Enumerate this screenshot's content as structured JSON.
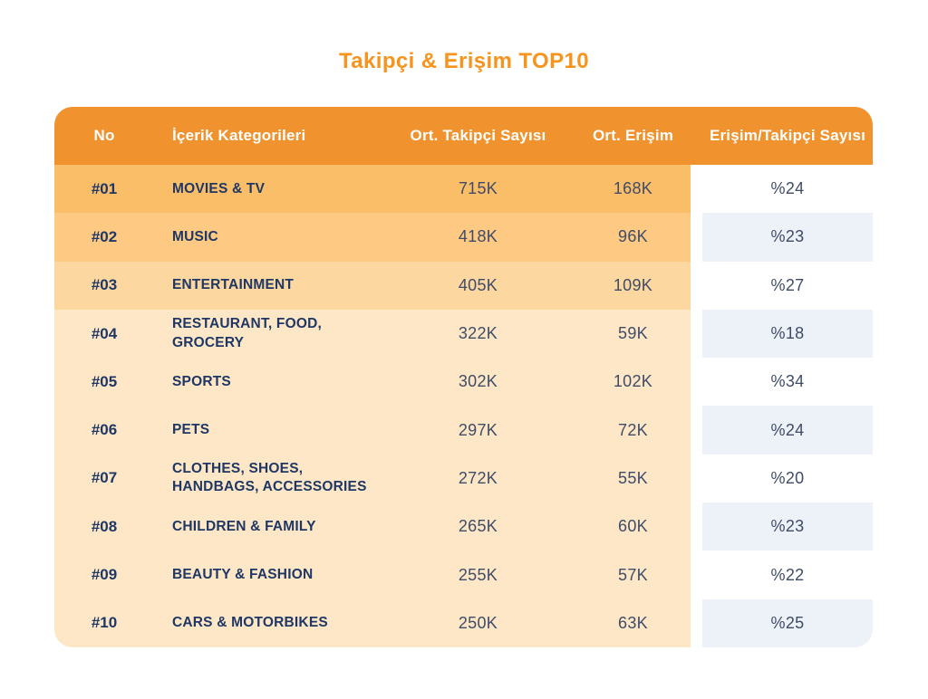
{
  "title": "Takipçi & Erişim TOP10",
  "table": {
    "headers": {
      "no": "No",
      "category": "İçerik Kategorileri",
      "followers": "Ort. Takipçi Sayısı",
      "reach": "Ort. Erişim",
      "ratio": "Erişim/Takipçi Sayısı"
    },
    "rows": [
      {
        "no": "#01",
        "category": "MOVIES & TV",
        "followers": "715K",
        "reach": "168K",
        "ratio": "%24"
      },
      {
        "no": "#02",
        "category": "MUSIC",
        "followers": "418K",
        "reach": "96K",
        "ratio": "%23"
      },
      {
        "no": "#03",
        "category": "ENTERTAINMENT",
        "followers": "405K",
        "reach": "109K",
        "ratio": "%27"
      },
      {
        "no": "#04",
        "category": "RESTAURANT, FOOD,\nGROCERY",
        "followers": "322K",
        "reach": "59K",
        "ratio": "%18"
      },
      {
        "no": "#05",
        "category": "SPORTS",
        "followers": "302K",
        "reach": "102K",
        "ratio": "%34"
      },
      {
        "no": "#06",
        "category": "PETS",
        "followers": "297K",
        "reach": "72K",
        "ratio": "%24"
      },
      {
        "no": "#07",
        "category": "CLOTHES, SHOES,\nHANDBAGS, ACCESSORIES",
        "followers": "272K",
        "reach": "55K",
        "ratio": "%20"
      },
      {
        "no": "#08",
        "category": "CHILDREN & FAMILY",
        "followers": "265K",
        "reach": "60K",
        "ratio": "%23"
      },
      {
        "no": "#09",
        "category": "BEAUTY & FASHION",
        "followers": "255K",
        "reach": "57K",
        "ratio": "%22"
      },
      {
        "no": "#10",
        "category": "CARS & MOTORBIKES",
        "followers": "250K",
        "reach": "63K",
        "ratio": "%25"
      }
    ]
  },
  "colors": {
    "title": "#F7941D",
    "header_bg": "#F0922E",
    "header_text": "#FFFFFF",
    "label_text": "#1E3765",
    "value_text": "#3F4C68",
    "row_backgrounds": [
      "#FBBE68",
      "#FDC983",
      "#FDD7A0",
      "#FEE7C6",
      "#FEE7C6",
      "#FEE7C6",
      "#FEE7C6",
      "#FEE7C6",
      "#FEE7C6",
      "#FEE7C6"
    ],
    "ratio_cell_odd": "#FFFFFF",
    "ratio_cell_even": "#EDF1F8"
  },
  "chart_data": {
    "type": "table",
    "title": "Takipçi & Erişim TOP10",
    "columns": [
      "No",
      "İçerik Kategorileri",
      "Ort. Takipçi Sayısı",
      "Ort. Erişim",
      "Erişim/Takipçi Sayısı"
    ],
    "rows": [
      [
        "#01",
        "MOVIES & TV",
        "715K",
        "168K",
        "%24"
      ],
      [
        "#02",
        "MUSIC",
        "418K",
        "96K",
        "%23"
      ],
      [
        "#03",
        "ENTERTAINMENT",
        "405K",
        "109K",
        "%27"
      ],
      [
        "#04",
        "RESTAURANT, FOOD, GROCERY",
        "322K",
        "59K",
        "%18"
      ],
      [
        "#05",
        "SPORTS",
        "302K",
        "102K",
        "%34"
      ],
      [
        "#06",
        "PETS",
        "297K",
        "72K",
        "%24"
      ],
      [
        "#07",
        "CLOTHES, SHOES, HANDBAGS, ACCESSORIES",
        "272K",
        "55K",
        "%20"
      ],
      [
        "#08",
        "CHILDREN & FAMILY",
        "265K",
        "60K",
        "%23"
      ],
      [
        "#09",
        "BEAUTY & FASHION",
        "255K",
        "57K",
        "%22"
      ],
      [
        "#10",
        "CARS & MOTORBIKES",
        "250K",
        "63K",
        "%25"
      ]
    ]
  }
}
